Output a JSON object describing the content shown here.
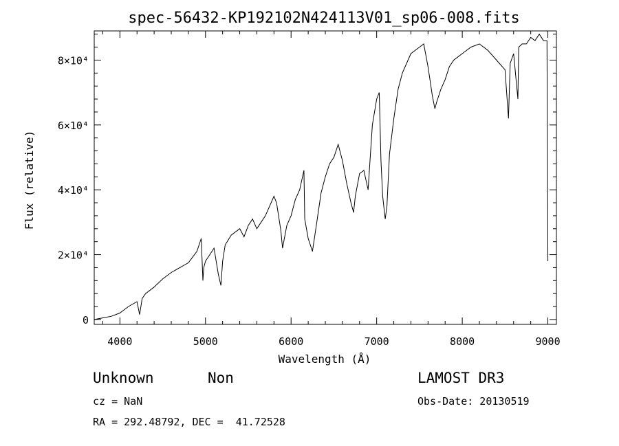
{
  "chart_data": {
    "type": "line",
    "title": "spec-56432-KP192102N424113V01_sp06-008.fits",
    "xlabel": "Wavelength (Å)",
    "ylabel": "Flux (relative)",
    "xlim": [
      3700,
      9100
    ],
    "ylim": [
      -1500,
      89000
    ],
    "x_ticks": [
      4000,
      5000,
      6000,
      7000,
      8000,
      9000
    ],
    "y_ticks": [
      {
        "value": 0,
        "label": "0"
      },
      {
        "value": 20000,
        "label": "2×10⁴"
      },
      {
        "value": 40000,
        "label": "4×10⁴"
      },
      {
        "value": 60000,
        "label": "6×10⁴"
      },
      {
        "value": 80000,
        "label": "8×10⁴"
      }
    ],
    "series": [
      {
        "x": [
          3700,
          3800,
          3900,
          4000,
          4100,
          4200,
          4230,
          4260,
          4300,
          4400,
          4500,
          4600,
          4700,
          4800,
          4900,
          4950,
          4970,
          4980,
          5000,
          5050,
          5100,
          5150,
          5180,
          5200,
          5230,
          5300,
          5400,
          5450,
          5500,
          5550,
          5600,
          5700,
          5800,
          5830,
          5880,
          5900,
          5950,
          6000,
          6050,
          6100,
          6150,
          6160,
          6200,
          6250,
          6300,
          6350,
          6400,
          6450,
          6500,
          6550,
          6600,
          6650,
          6700,
          6730,
          6750,
          6800,
          6850,
          6900,
          6950,
          7000,
          7030,
          7050,
          7070,
          7100,
          7120,
          7150,
          7200,
          7250,
          7300,
          7400,
          7500,
          7550,
          7600,
          7650,
          7680,
          7700,
          7750,
          7800,
          7850,
          7900,
          7950,
          8000,
          8100,
          8200,
          8300,
          8400,
          8500,
          8540,
          8560,
          8600,
          8650,
          8660,
          8700,
          8750,
          8800,
          8850,
          8900,
          8950,
          8990,
          9000
        ],
        "y": [
          0,
          500,
          1000,
          2000,
          4000,
          5500,
          1500,
          6500,
          8000,
          10000,
          12500,
          14500,
          16000,
          17500,
          21000,
          25000,
          12000,
          16000,
          18000,
          20000,
          22000,
          14000,
          10500,
          18000,
          23000,
          26000,
          28000,
          25500,
          29000,
          31000,
          28000,
          32000,
          38000,
          36000,
          27500,
          22000,
          29000,
          32000,
          37000,
          40000,
          46000,
          31000,
          25000,
          21000,
          30000,
          39000,
          44000,
          48000,
          50000,
          54000,
          49000,
          42000,
          36000,
          33000,
          38000,
          45000,
          46000,
          40000,
          60000,
          68000,
          70000,
          49000,
          38000,
          31000,
          35000,
          51000,
          62000,
          71000,
          76000,
          82000,
          84000,
          85000,
          78000,
          69000,
          65000,
          67000,
          71000,
          74000,
          78000,
          80000,
          81000,
          82000,
          84000,
          85000,
          83000,
          80000,
          77000,
          62000,
          79000,
          82000,
          68000,
          84000,
          85000,
          85000,
          87000,
          86000,
          88000,
          86000,
          86000,
          18000
        ]
      }
    ]
  },
  "info": {
    "object_class": "Unknown",
    "subclass": "Non",
    "survey": "LAMOST DR3",
    "cz": "cz = NaN",
    "obs_date": "Obs-Date: 20130519",
    "coords": "RA = 292.48792, DEC =  41.72528"
  }
}
